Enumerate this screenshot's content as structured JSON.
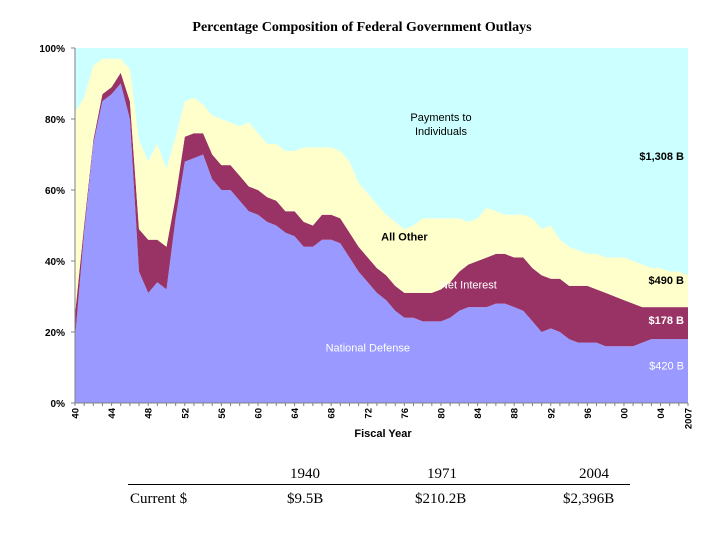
{
  "chart_data": {
    "type": "area",
    "title": "Percentage Composition of Federal Government Outlays",
    "xlabel": "Fiscal Year",
    "ylabel": "",
    "ylim": [
      0,
      100
    ],
    "y_ticks": [
      "0%",
      "20%",
      "40%",
      "60%",
      "80%",
      "100%"
    ],
    "x_tick_labels": [
      "40",
      "44",
      "48",
      "52",
      "56",
      "60",
      "64",
      "68",
      "72",
      "76",
      "80",
      "84",
      "88",
      "92",
      "96",
      "00",
      "04",
      "2007"
    ],
    "x_tick_years": [
      1940,
      1944,
      1948,
      1952,
      1956,
      1960,
      1964,
      1968,
      1972,
      1976,
      1980,
      1984,
      1988,
      1992,
      1996,
      2000,
      2004,
      2007
    ],
    "stacked": true,
    "x": [
      1940,
      1941,
      1942,
      1943,
      1944,
      1945,
      1946,
      1947,
      1948,
      1949,
      1950,
      1951,
      1952,
      1953,
      1954,
      1955,
      1956,
      1957,
      1958,
      1959,
      1960,
      1961,
      1962,
      1963,
      1964,
      1965,
      1966,
      1967,
      1968,
      1969,
      1970,
      1971,
      1972,
      1973,
      1974,
      1975,
      1976,
      1977,
      1978,
      1979,
      1980,
      1981,
      1982,
      1983,
      1984,
      1985,
      1986,
      1987,
      1988,
      1989,
      1990,
      1991,
      1992,
      1993,
      1994,
      1995,
      1996,
      1997,
      1998,
      1999,
      2000,
      2001,
      2002,
      2003,
      2004,
      2005,
      2006,
      2007
    ],
    "series": [
      {
        "name": "National Defense",
        "color": "#9999ff",
        "values": [
          18,
          48,
          73,
          85,
          87,
          90,
          80,
          37,
          31,
          34,
          32,
          52,
          68,
          69,
          70,
          63,
          60,
          60,
          57,
          54,
          53,
          51,
          50,
          48,
          47,
          44,
          44,
          46,
          46,
          45,
          41,
          37,
          34,
          31,
          29,
          26,
          24,
          24,
          23,
          23,
          23,
          24,
          26,
          27,
          27,
          27,
          28,
          28,
          27,
          26,
          23,
          20,
          21,
          20,
          18,
          17,
          17,
          17,
          16,
          16,
          16,
          16,
          17,
          18,
          18,
          18,
          18,
          18
        ]
      },
      {
        "name": "Net Interest",
        "color": "#993366",
        "values": [
          7,
          2,
          1,
          2,
          2,
          3,
          5,
          12,
          15,
          12,
          12,
          6,
          7,
          7,
          6,
          7,
          7,
          7,
          7,
          7,
          7,
          7,
          7,
          6,
          7,
          7,
          6,
          7,
          7,
          7,
          7,
          7,
          7,
          7,
          7,
          7,
          7,
          7,
          8,
          8,
          9,
          10,
          11,
          12,
          13,
          14,
          14,
          14,
          14,
          15,
          15,
          16,
          14,
          15,
          15,
          16,
          16,
          15,
          15,
          14,
          13,
          12,
          10,
          9,
          9,
          9,
          9,
          9
        ]
      },
      {
        "name": "All Other",
        "color": "#ffffcc",
        "values": [
          57,
          36,
          21,
          10,
          8,
          4,
          9,
          25,
          22,
          27,
          22,
          17,
          10,
          10,
          8,
          11,
          13,
          12,
          14,
          18,
          16,
          15,
          16,
          17,
          17,
          21,
          22,
          19,
          19,
          19,
          20,
          18,
          18,
          18,
          17,
          18,
          18,
          19,
          21,
          21,
          20,
          18,
          15,
          12,
          12,
          14,
          12,
          11,
          12,
          12,
          14,
          13,
          15,
          11,
          11,
          10,
          9,
          10,
          10,
          11,
          12,
          12,
          12,
          11,
          11,
          10,
          10,
          9
        ]
      },
      {
        "name": "Payments to Individuals",
        "color": "#ccffff",
        "values": [
          18,
          14,
          5,
          3,
          3,
          3,
          6,
          26,
          32,
          27,
          34,
          25,
          15,
          14,
          16,
          19,
          20,
          21,
          22,
          21,
          24,
          27,
          27,
          29,
          29,
          28,
          28,
          28,
          28,
          29,
          32,
          38,
          41,
          44,
          47,
          49,
          51,
          50,
          48,
          48,
          48,
          48,
          48,
          49,
          48,
          45,
          46,
          47,
          47,
          47,
          48,
          51,
          50,
          54,
          56,
          57,
          58,
          58,
          59,
          59,
          59,
          60,
          61,
          62,
          62,
          63,
          63,
          64
        ]
      }
    ],
    "annotations": [
      {
        "text": "Payments to",
        "series": "Payments to Individuals"
      },
      {
        "text": "Individuals",
        "series": "Payments to Individuals"
      },
      {
        "text": "$1,308 B",
        "series": "Payments to Individuals"
      },
      {
        "text": "All Other",
        "series": "All Other"
      },
      {
        "text": "$490 B",
        "series": "All Other"
      },
      {
        "text": "Net Interest",
        "series": "Net Interest"
      },
      {
        "text": "$178 B",
        "series": "Net Interest"
      },
      {
        "text": "National Defense",
        "series": "National Defense"
      },
      {
        "text": "$420 B",
        "series": "National Defense"
      }
    ]
  },
  "footer": {
    "row_label": "Current $",
    "columns": [
      {
        "year": "1940",
        "value": "$9.5B"
      },
      {
        "year": "1971",
        "value": "$210.2B"
      },
      {
        "year": "2004",
        "value": "$2,396B"
      }
    ]
  }
}
